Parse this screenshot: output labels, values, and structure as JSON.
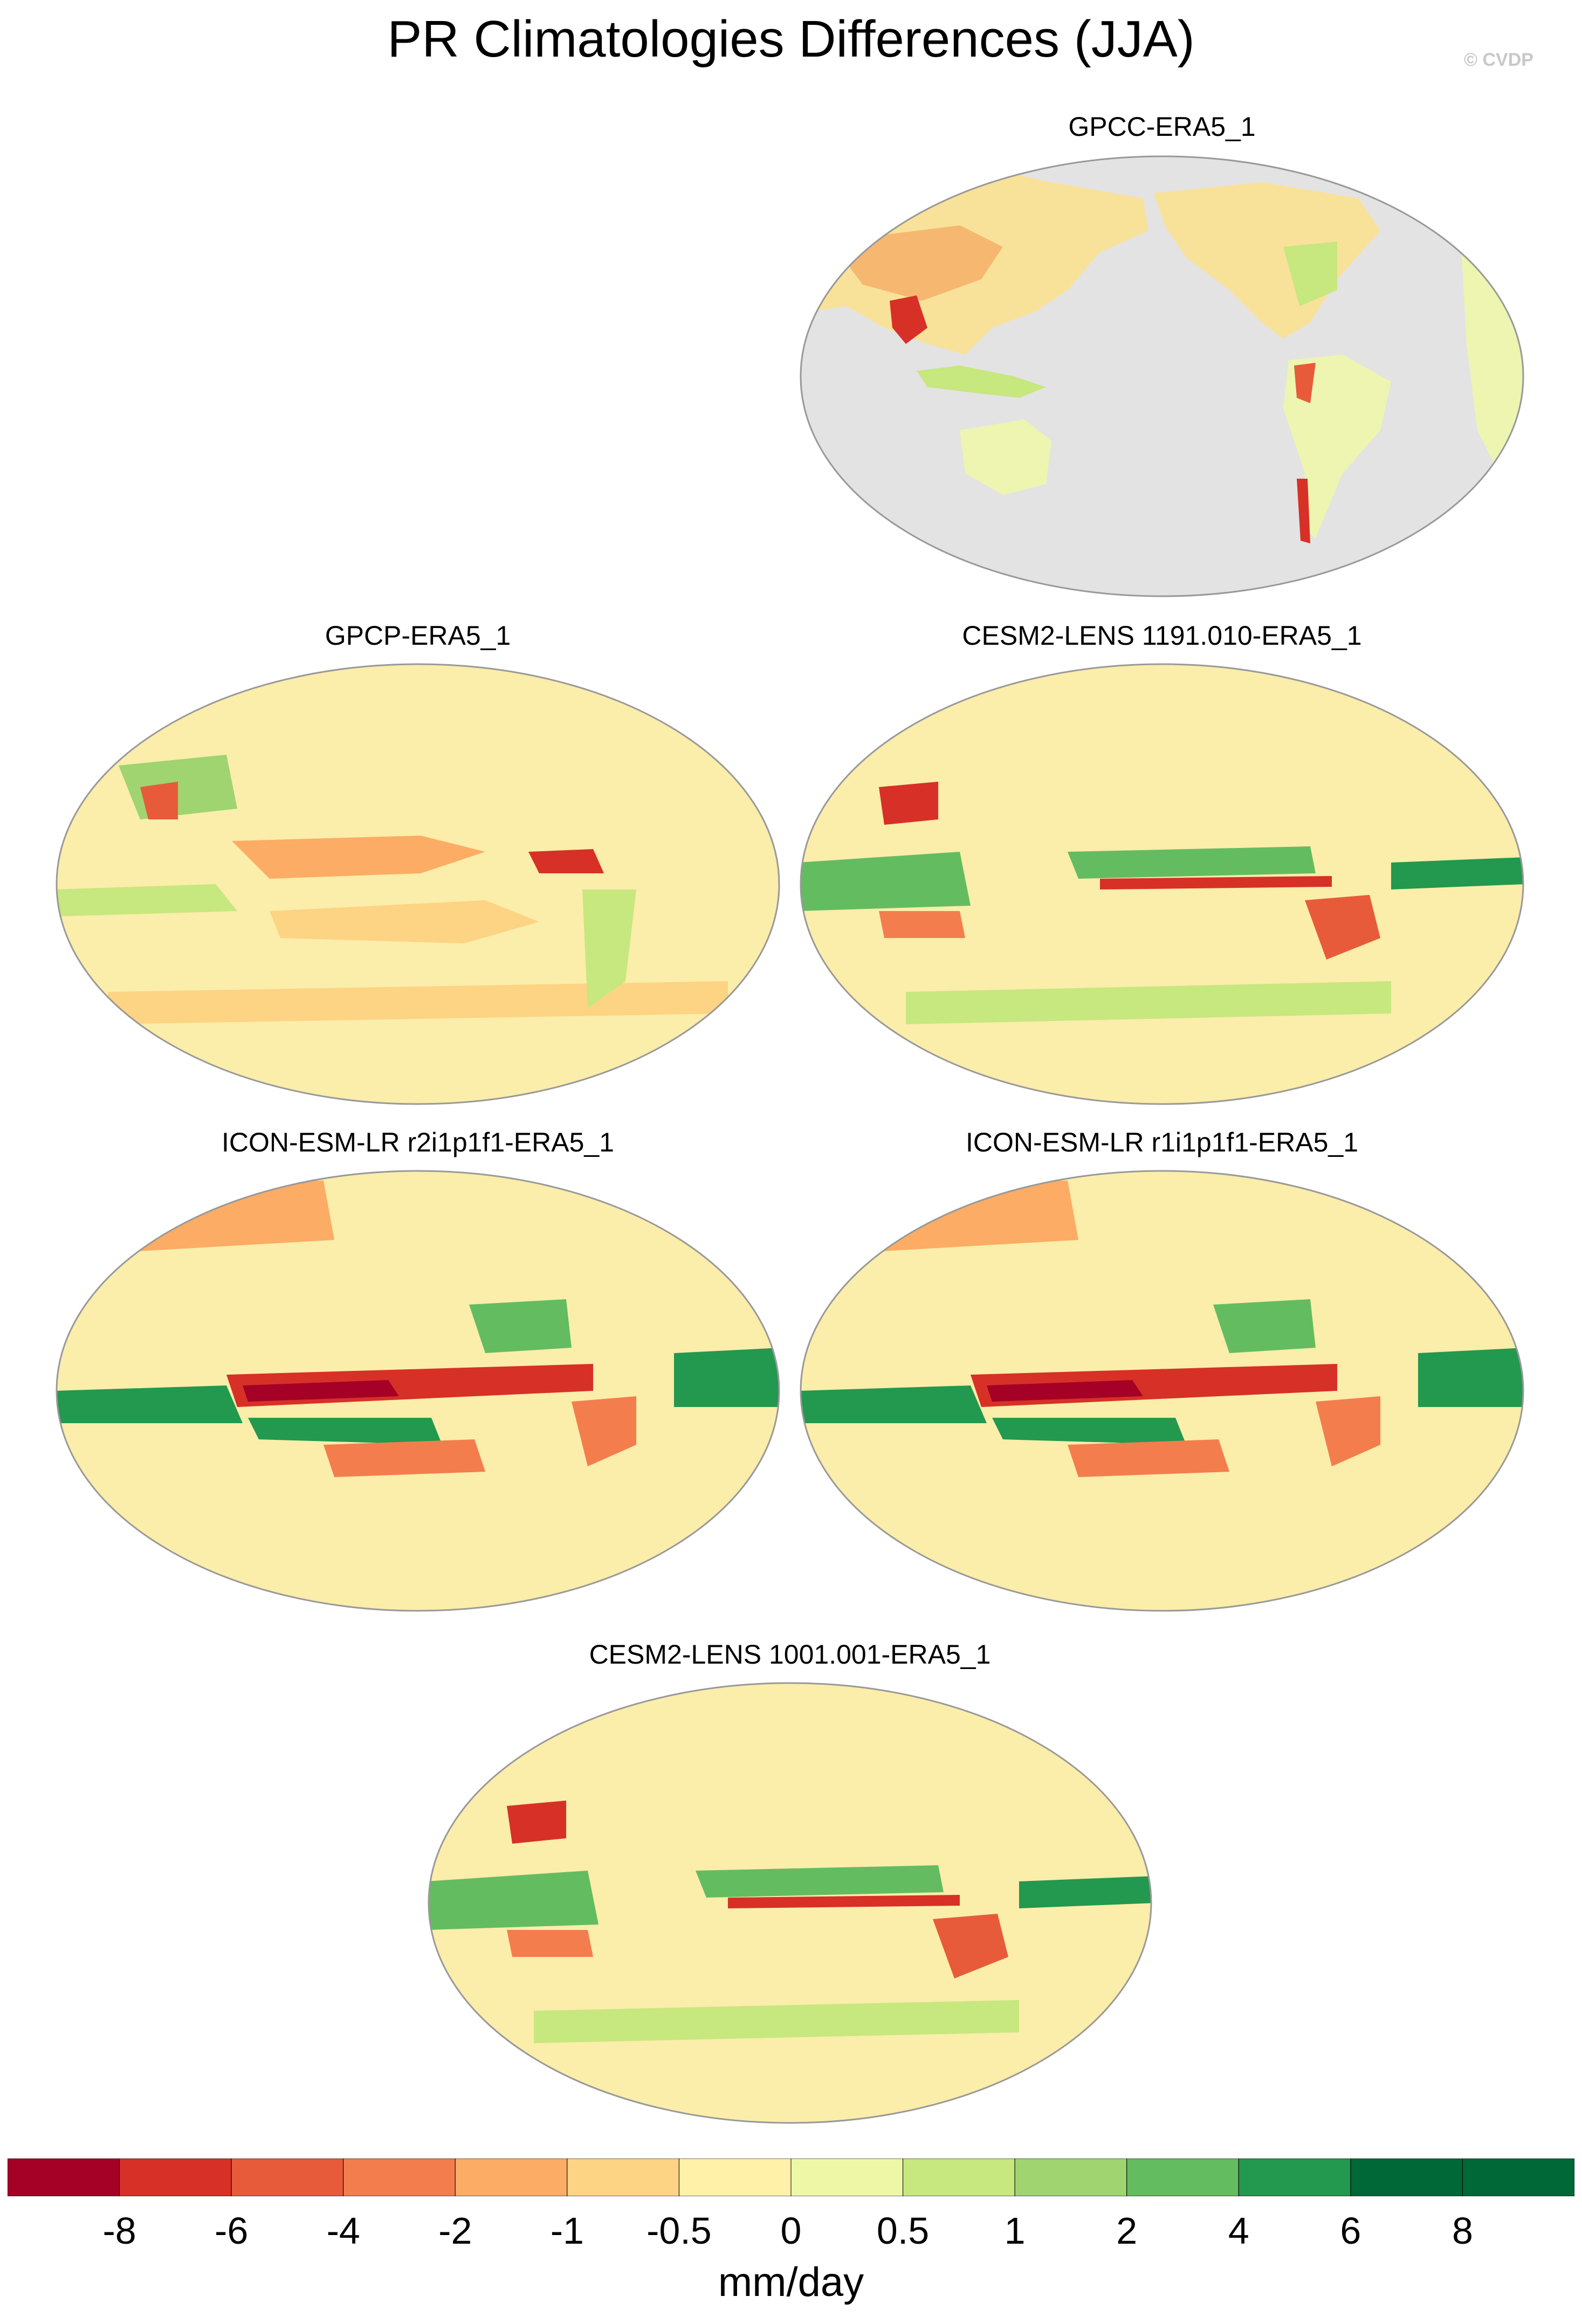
{
  "title": "PR Climatologies Differences (JJA)",
  "watermark": "© CVDP",
  "panels": [
    {
      "label": "GPCC-ERA5_1",
      "ocean_masked": true
    },
    {
      "label": "GPCP-ERA5_1",
      "ocean_masked": false
    },
    {
      "label": "CESM2-LENS 1191.010-ERA5_1",
      "ocean_masked": false
    },
    {
      "label": "ICON-ESM-LR r2i1p1f1-ERA5_1",
      "ocean_masked": false
    },
    {
      "label": "ICON-ESM-LR r1i1p1f1-ERA5_1",
      "ocean_masked": false
    },
    {
      "label": "CESM2-LENS 1001.001-ERA5_1",
      "ocean_masked": false
    }
  ],
  "colorbar": {
    "ticks": [
      "-8",
      "-6",
      "-4",
      "-2",
      "-1",
      "-0.5",
      "0",
      "0.5",
      "1",
      "2",
      "4",
      "6",
      "8"
    ],
    "colors": [
      "#a50026",
      "#d73027",
      "#e75b3a",
      "#f47d4d",
      "#fcac64",
      "#fdd384",
      "#fff1a8",
      "#eef7a5",
      "#c7e77f",
      "#9fd470",
      "#64bc61",
      "#23984f",
      "#006837"
    ],
    "units": "mm/day"
  },
  "colors": {
    "land_fill": "#eef5b0",
    "ocean_mask": "#e3e3e3",
    "coast": "#7a7a7a"
  }
}
